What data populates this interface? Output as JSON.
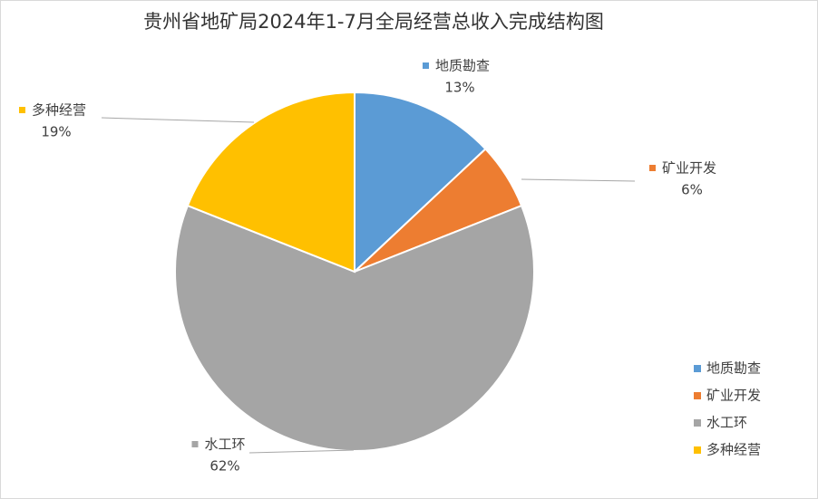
{
  "chart_data": {
    "type": "pie",
    "title": "贵州省地矿局2024年1-7月全局经营总收入完成结构图",
    "categories": [
      "地质勘查",
      "矿业开发",
      "水工环",
      "多种经营"
    ],
    "values": [
      13,
      6,
      62,
      19
    ],
    "value_labels": [
      "13%",
      "6%",
      "62%",
      "19%"
    ],
    "colors": [
      "#5b9bd5",
      "#ed7d31",
      "#a5a5a5",
      "#ffc000"
    ],
    "legend": "right"
  }
}
